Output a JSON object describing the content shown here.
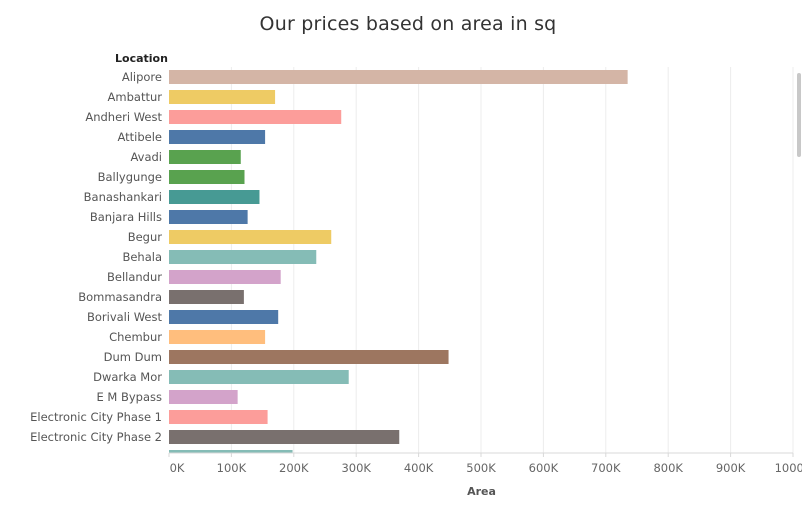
{
  "chart_data": {
    "type": "bar",
    "orientation": "horizontal",
    "title": "Our prices based on area in sq",
    "row_header": "Location",
    "xlabel": "Area",
    "ylabel": "",
    "xlim": [
      0,
      1000000
    ],
    "x_ticks": [
      0,
      100000,
      200000,
      300000,
      400000,
      500000,
      600000,
      700000,
      800000,
      900000,
      1000000
    ],
    "x_tick_labels": [
      "0K",
      "100K",
      "200K",
      "300K",
      "400K",
      "500K",
      "600K",
      "700K",
      "800K",
      "900K",
      "1000K"
    ],
    "grid": "vertical",
    "categories": [
      "Alipore",
      "Ambattur",
      "Andheri West",
      "Attibele",
      "Avadi",
      "Ballygunge",
      "Banashankari",
      "Banjara Hills",
      "Begur",
      "Behala",
      "Bellandur",
      "Bommasandra",
      "Borivali West",
      "Chembur",
      "Dum Dum",
      "Dwarka Mor",
      "E M Bypass",
      "Electronic City Phase 1",
      "Electronic City Phase 2"
    ],
    "values": [
      735000,
      170000,
      276000,
      154000,
      115000,
      121000,
      145000,
      126000,
      260000,
      236000,
      179000,
      120000,
      175000,
      154000,
      448000,
      288000,
      110000,
      158000,
      369000
    ],
    "partial_last_value": 198000,
    "colors": [
      "#d4b5a6",
      "#eecb64",
      "#fc9d9a",
      "#4e78a8",
      "#59a24f",
      "#59a24f",
      "#479a94",
      "#4e78a8",
      "#eecb64",
      "#85bcb6",
      "#d3a3ca",
      "#79706e",
      "#4e78a8",
      "#ffbe7d",
      "#9d7660",
      "#85bcb6",
      "#d3a3ca",
      "#fc9d9a",
      "#79706e"
    ],
    "partial_last_color": "#85bcb6"
  }
}
